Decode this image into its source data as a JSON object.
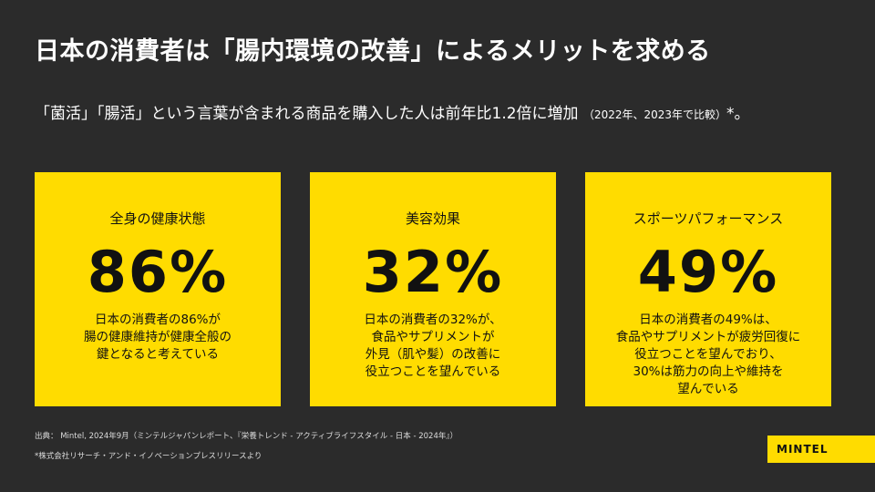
{
  "title": "日本の消費者は「腸内環境の改善」によるメリットを求める",
  "subtitle": {
    "main": "「菌活」「腸活」という言葉が含まれる商品を購入した人は前年比1.2倍に増加",
    "note": "（2022年、2023年で比較）",
    "suffix": "*。"
  },
  "cards": [
    {
      "label": "全身の健康状態",
      "value": "86%",
      "desc": "日本の消費者の86%が\n腸の健康維持が健康全般の\n鍵となると考えている"
    },
    {
      "label": "美容効果",
      "value": "32%",
      "desc": "日本の消費者の32%が、\n食品やサプリメントが\n外見（肌や髪）の改善に\n役立つことを望んでいる"
    },
    {
      "label": "スポーツパフォーマンス",
      "value": "49%",
      "desc": "日本の消費者の49%は、\n食品やサプリメントが疲労回復に\n役立つことを望んでおり、\n30%は筋力の向上や維持を\n望んでいる"
    }
  ],
  "source": "出典： Mintel, 2024年9月（ミンテルジャパンレポート、『栄養トレンド - アクティブライフスタイル - 日本 - 2024年』）",
  "footnote": "*株式会社リサーチ・アンド・イノベーションプレスリリースより",
  "logo": "MINTEL",
  "colors": {
    "accent": "#ffdc00",
    "background": "#2b2b2b"
  }
}
